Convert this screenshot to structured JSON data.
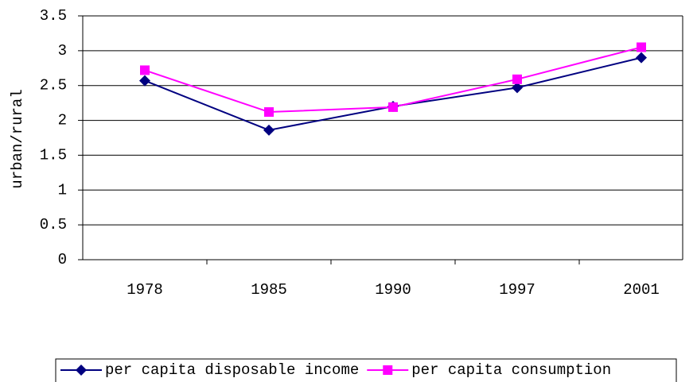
{
  "chart_data": {
    "type": "line",
    "y_label": "urban/rural",
    "categories": [
      "1978",
      "1985",
      "1990",
      "1997",
      "2001"
    ],
    "series": [
      {
        "name": "per capita disposable income",
        "color": "#000080",
        "marker": "diamond",
        "values": [
          2.57,
          1.86,
          2.2,
          2.47,
          2.9
        ]
      },
      {
        "name": "per capita consumption",
        "color": "#ff00ff",
        "marker": "square",
        "values": [
          2.72,
          2.12,
          2.19,
          2.59,
          3.05
        ]
      }
    ],
    "ylim": [
      0,
      3.5
    ],
    "yticks": [
      0,
      0.5,
      1,
      1.5,
      2,
      2.5,
      3,
      3.5
    ],
    "grid": true,
    "legend": "bottom"
  }
}
